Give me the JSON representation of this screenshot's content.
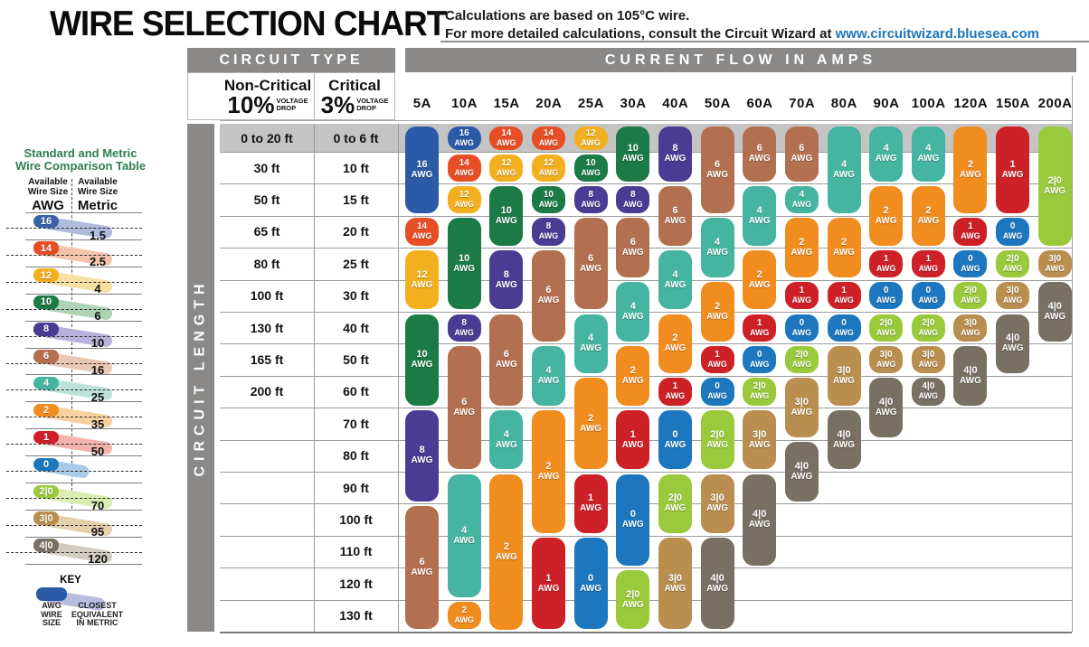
{
  "title": "WIRE SELECTION CHART",
  "notes": {
    "line1": "Calculations are based on 105°C wire.",
    "line2": "For more detailed calculations, consult the Circuit Wizard at",
    "link": "www.circuitwizard.bluesea.com",
    "link_color": "#1c76bc"
  },
  "comparison": {
    "title1": "Standard and Metric",
    "title2": "Wire Comparison Table",
    "title_color": "#2e7d4f",
    "awg_header1": "Available",
    "awg_header2": "Wire Size",
    "awg_unit": "AWG",
    "metric_header1": "Available",
    "metric_header2": "Wire Size",
    "metric_unit": "Metric",
    "rows": [
      {
        "awg": "16",
        "metric": "1.5",
        "color": "#3a62a7",
        "tint": "#afbbdc"
      },
      {
        "awg": "14",
        "metric": "2.5",
        "color": "#e84e25",
        "tint": "#f4c3ab"
      },
      {
        "awg": "12",
        "metric": "4",
        "color": "#f2b01e",
        "tint": "#f8e0a2"
      },
      {
        "awg": "10",
        "metric": "6",
        "color": "#1b7a45",
        "tint": "#aed3b5"
      },
      {
        "awg": "8",
        "metric": "10",
        "color": "#4a3c92",
        "tint": "#b9b0dc"
      },
      {
        "awg": "6",
        "metric": "16",
        "color": "#b37050",
        "tint": "#eac9b4"
      },
      {
        "awg": "4",
        "metric": "25",
        "color": "#45b5a2",
        "tint": "#bce2d9"
      },
      {
        "awg": "2",
        "metric": "35",
        "color": "#f18c1f",
        "tint": "#f8d1a0"
      },
      {
        "awg": "1",
        "metric": "50",
        "color": "#ce2027",
        "tint": "#f2b3ab"
      },
      {
        "awg": "0",
        "metric": "",
        "color": "#1c77be",
        "tint": "#aacbe8"
      },
      {
        "awg": "2|0",
        "metric": "70",
        "color": "#9aca3c",
        "tint": "#dcedb2"
      },
      {
        "awg": "3|0",
        "metric": "95",
        "color": "#b98e4f",
        "tint": "#e5d0ac"
      },
      {
        "awg": "4|0",
        "metric": "120",
        "color": "#777063",
        "tint": "#d2ccc2"
      }
    ],
    "key": {
      "label": "KEY",
      "pill_color": "#2b5aa7",
      "tail_color": "#b9bcdc",
      "left": [
        "AWG",
        "WIRE",
        "SIZE"
      ],
      "right": [
        "CLOSEST",
        "EQUIVALENT",
        "IN METRIC"
      ]
    }
  },
  "table": {
    "circuit_type": "CIRCUIT TYPE",
    "current_flow": "CURRENT FLOW IN AMPS",
    "non_critical": {
      "name": "Non-Critical",
      "pct": "10%",
      "note1": "VOLTAGE",
      "note2": "DROP"
    },
    "critical": {
      "name": "Critical",
      "pct": "3%",
      "note1": "VOLTAGE",
      "note2": "DROP"
    },
    "circuit_length": "CIRCUIT LENGTH",
    "colors": {
      "header_bar": "#8a8988",
      "row1_band": "#c5c4c4",
      "grid_line": "#9b9b9b"
    }
  },
  "chart_data": {
    "type": "table",
    "title": "Wire Selection Chart",
    "x_axis": "Current flow in amps",
    "y_axis_left": "Circuit length, Non-Critical 10% voltage drop",
    "y_axis_right": "Circuit length, Critical 3% voltage drop",
    "length_rows": [
      [
        "0 to 20 ft",
        "0 to 6 ft"
      ],
      [
        "30 ft",
        "10 ft"
      ],
      [
        "50 ft",
        "15 ft"
      ],
      [
        "65 ft",
        "20 ft"
      ],
      [
        "80 ft",
        "25 ft"
      ],
      [
        "100 ft",
        "30 ft"
      ],
      [
        "130 ft",
        "40 ft"
      ],
      [
        "165 ft",
        "50 ft"
      ],
      [
        "200 ft",
        "60 ft"
      ],
      [
        "",
        "70 ft"
      ],
      [
        "",
        "80 ft"
      ],
      [
        "",
        "90 ft"
      ],
      [
        "",
        "100 ft"
      ],
      [
        "",
        "110 ft"
      ],
      [
        "",
        "120 ft"
      ],
      [
        "",
        "130 ft"
      ]
    ],
    "awg_colors": {
      "16": "#2b5aa7",
      "14": "#e84e25",
      "12": "#f2b01e",
      "10": "#1b7a45",
      "8": "#4a3c92",
      "6": "#b37050",
      "4": "#45b5a2",
      "2": "#f18c1f",
      "1": "#ce2027",
      "0": "#1c77be",
      "2|0": "#9aca3c",
      "3|0": "#b98e4f",
      "4|0": "#777063"
    },
    "columns": [
      {
        "amps": "5A",
        "segments": [
          [
            "16",
            3
          ],
          [
            "14",
            1
          ],
          [
            "12",
            2
          ],
          [
            "10",
            3
          ],
          [
            "8",
            3
          ],
          [
            "6",
            4
          ]
        ]
      },
      {
        "amps": "10A",
        "segments": [
          [
            "16",
            1
          ],
          [
            "14",
            1
          ],
          [
            "12",
            1
          ],
          [
            "10",
            3
          ],
          [
            "8",
            1
          ],
          [
            "6",
            4
          ],
          [
            "4",
            4
          ],
          [
            "2",
            1
          ]
        ]
      },
      {
        "amps": "15A",
        "segments": [
          [
            "14",
            1
          ],
          [
            "12",
            1
          ],
          [
            "10",
            2
          ],
          [
            "8",
            2
          ],
          [
            "6",
            3
          ],
          [
            "4",
            2
          ],
          [
            "2",
            5
          ]
        ]
      },
      {
        "amps": "20A",
        "segments": [
          [
            "14",
            1
          ],
          [
            "12",
            1
          ],
          [
            "10",
            1
          ],
          [
            "8",
            1
          ],
          [
            "6",
            3
          ],
          [
            "4",
            2
          ],
          [
            "2",
            4
          ],
          [
            "1",
            3
          ]
        ]
      },
      {
        "amps": "25A",
        "segments": [
          [
            "12",
            1
          ],
          [
            "10",
            1
          ],
          [
            "8",
            1
          ],
          [
            "6",
            3
          ],
          [
            "4",
            2
          ],
          [
            "2",
            3
          ],
          [
            "1",
            2
          ],
          [
            "0",
            3
          ]
        ]
      },
      {
        "amps": "30A",
        "segments": [
          [
            "10",
            2
          ],
          [
            "8",
            1
          ],
          [
            "6",
            2
          ],
          [
            "4",
            2
          ],
          [
            "2",
            2
          ],
          [
            "1",
            2
          ],
          [
            "0",
            3
          ],
          [
            "2|0",
            2
          ]
        ]
      },
      {
        "amps": "40A",
        "segments": [
          [
            "8",
            2
          ],
          [
            "6",
            2
          ],
          [
            "4",
            2
          ],
          [
            "2",
            2
          ],
          [
            "1",
            1
          ],
          [
            "0",
            2
          ],
          [
            "2|0",
            2
          ],
          [
            "3|0",
            3
          ]
        ]
      },
      {
        "amps": "50A",
        "segments": [
          [
            "6",
            3
          ],
          [
            "4",
            2
          ],
          [
            "2",
            2
          ],
          [
            "1",
            1
          ],
          [
            "0",
            1
          ],
          [
            "2|0",
            2
          ],
          [
            "3|0",
            2
          ],
          [
            "4|0",
            3
          ]
        ]
      },
      {
        "amps": "60A",
        "segments": [
          [
            "6",
            2
          ],
          [
            "4",
            2
          ],
          [
            "2",
            2
          ],
          [
            "1",
            1
          ],
          [
            "0",
            1
          ],
          [
            "2|0",
            1
          ],
          [
            "3|0",
            2
          ],
          [
            "4|0",
            3
          ]
        ]
      },
      {
        "amps": "70A",
        "segments": [
          [
            "6",
            2
          ],
          [
            "4",
            1
          ],
          [
            "2",
            2
          ],
          [
            "1",
            1
          ],
          [
            "0",
            1
          ],
          [
            "2|0",
            1
          ],
          [
            "3|0",
            2
          ],
          [
            "4|0",
            2
          ]
        ]
      },
      {
        "amps": "80A",
        "segments": [
          [
            "4",
            3
          ],
          [
            "2",
            2
          ],
          [
            "1",
            1
          ],
          [
            "0",
            1
          ],
          [
            "3|0",
            2
          ],
          [
            "4|0",
            2
          ]
        ]
      },
      {
        "amps": "90A",
        "segments": [
          [
            "4",
            2
          ],
          [
            "2",
            2
          ],
          [
            "1",
            1
          ],
          [
            "0",
            1
          ],
          [
            "2|0",
            1
          ],
          [
            "3|0",
            1
          ],
          [
            "4|0",
            2
          ]
        ]
      },
      {
        "amps": "100A",
        "segments": [
          [
            "4",
            2
          ],
          [
            "2",
            2
          ],
          [
            "1",
            1
          ],
          [
            "0",
            1
          ],
          [
            "2|0",
            1
          ],
          [
            "3|0",
            1
          ],
          [
            "4|0",
            1
          ]
        ]
      },
      {
        "amps": "120A",
        "segments": [
          [
            "2",
            3
          ],
          [
            "1",
            1
          ],
          [
            "0",
            1
          ],
          [
            "2|0",
            1
          ],
          [
            "3|0",
            1
          ],
          [
            "4|0",
            2
          ]
        ]
      },
      {
        "amps": "150A",
        "segments": [
          [
            "1",
            3
          ],
          [
            "0",
            1
          ],
          [
            "2|0",
            1
          ],
          [
            "3|0",
            1
          ],
          [
            "4|0",
            2
          ]
        ]
      },
      {
        "amps": "200A",
        "segments": [
          [
            "2|0",
            4
          ],
          [
            "3|0",
            1
          ],
          [
            "4|0",
            2
          ]
        ]
      }
    ]
  }
}
